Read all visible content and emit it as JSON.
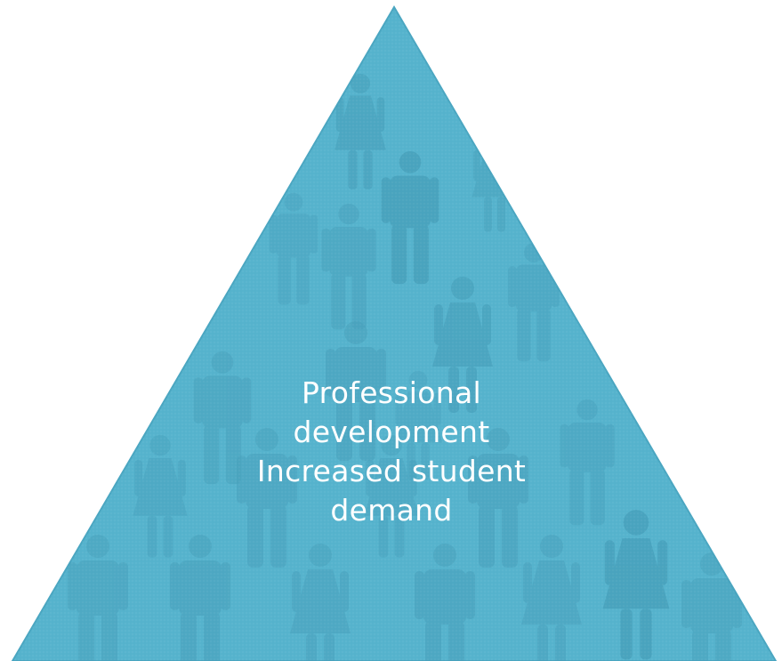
{
  "diagram": {
    "shape": "triangle",
    "fill_color": "#56b3cd",
    "edge_color": "#4aa6c1",
    "figure_color": "#479fba",
    "text_color": "#ffffff",
    "background_icon": "person-silhouette-icon",
    "label_lines": [
      "Professional",
      "development",
      "Increased student",
      "demand"
    ]
  }
}
